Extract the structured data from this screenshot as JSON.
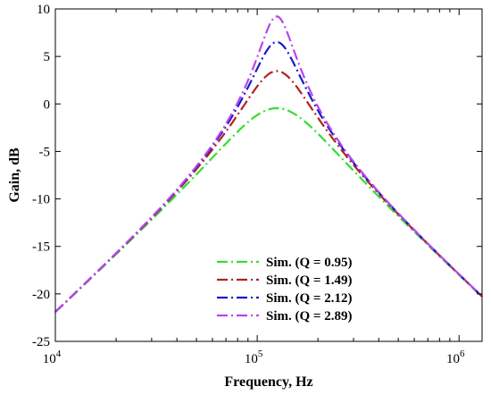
{
  "chart_data": {
    "type": "line",
    "xlabel": "Frequency, Hz",
    "ylabel": "Gain, dB",
    "xscale": "log",
    "xlim": [
      10000,
      1300000
    ],
    "ylim": [
      -25,
      10
    ],
    "x_ticks": [
      {
        "value": 10000,
        "base": "10",
        "exp": "4"
      },
      {
        "value": 100000,
        "base": "10",
        "exp": "5"
      },
      {
        "value": 1000000,
        "base": "10",
        "exp": "6"
      }
    ],
    "y_ticks": [
      {
        "value": 10,
        "label": "10"
      },
      {
        "value": 5,
        "label": "5"
      },
      {
        "value": 0,
        "label": "0"
      },
      {
        "value": -5,
        "label": "-5"
      },
      {
        "value": -10,
        "label": "-10"
      },
      {
        "value": -15,
        "label": "-15"
      },
      {
        "value": -20,
        "label": "-20"
      },
      {
        "value": -25,
        "label": "-25"
      }
    ],
    "grid": false,
    "legend_position": "bottom-right",
    "center_frequency": 125000,
    "series": [
      {
        "name": "Sim. (Q = 0.95)",
        "Q": 0.95,
        "color": "#33dd33",
        "dash": "dash-dot"
      },
      {
        "name": "Sim. (Q = 1.49)",
        "Q": 1.49,
        "color": "#b22222",
        "dash": "dash-dot"
      },
      {
        "name": "Sim. (Q = 2.12)",
        "Q": 2.12,
        "color": "#1a1acc",
        "dash": "dash-dot"
      },
      {
        "name": "Sim. (Q = 2.89)",
        "Q": 2.89,
        "color": "#bb44ee",
        "dash": "dash-dot"
      }
    ]
  }
}
